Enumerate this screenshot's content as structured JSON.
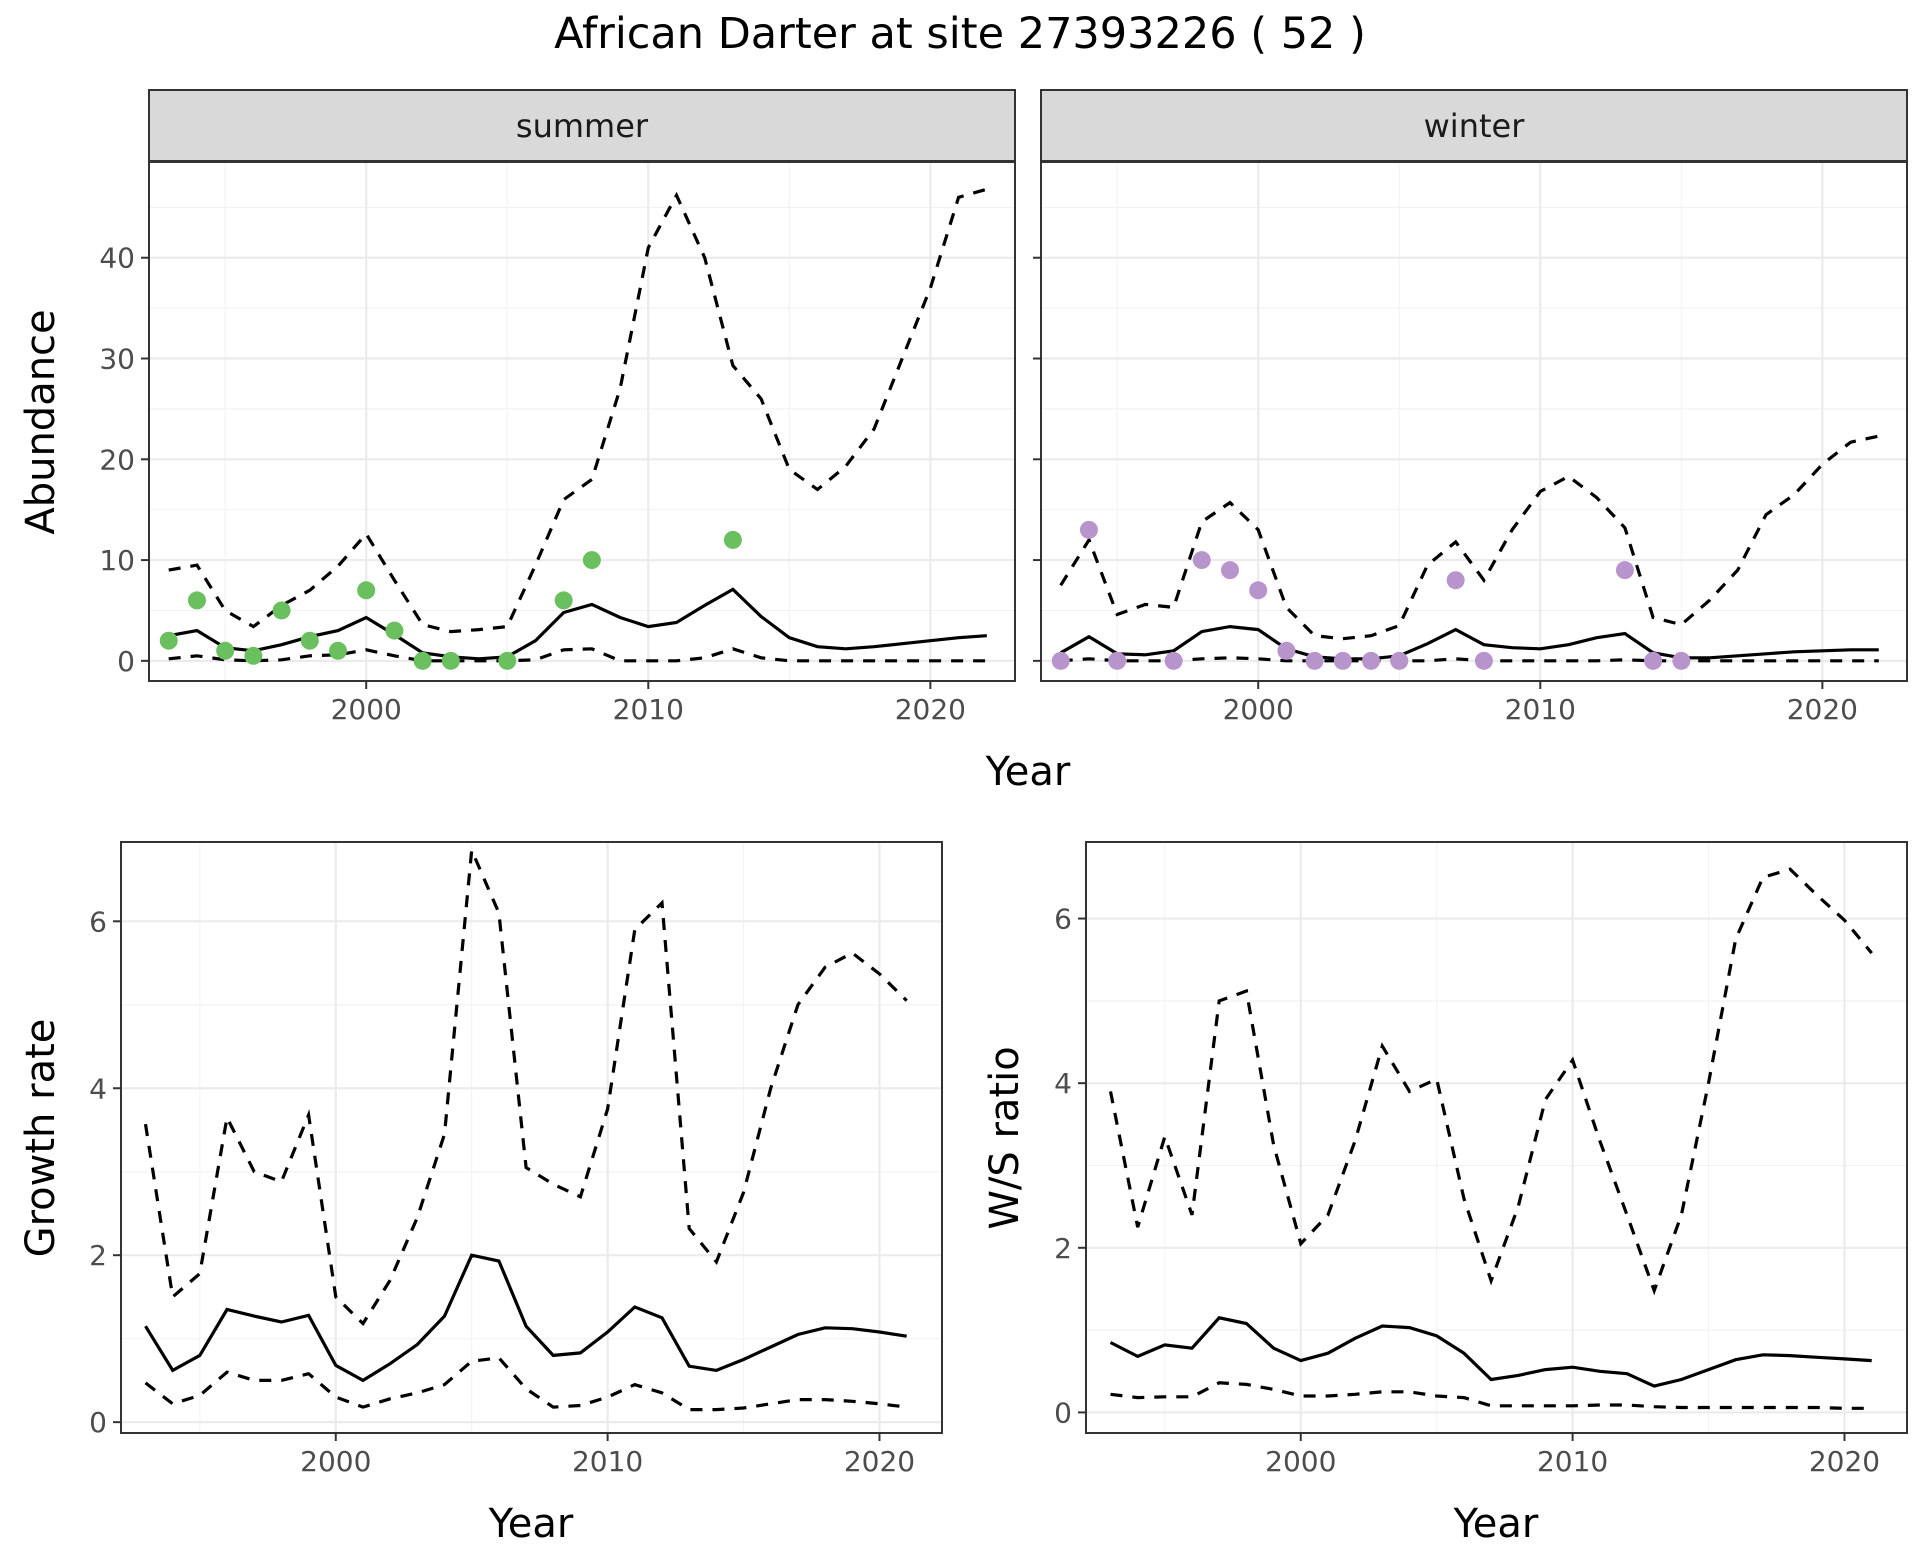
{
  "title": "African Darter at site 27393226 ( 52 )",
  "colors": {
    "summer_points": "#6abf5e",
    "winter_points": "#b894cc",
    "lines": "#000000"
  },
  "chart_data": [
    {
      "type": "line",
      "panel": "summer",
      "strip_label": "summer",
      "xlabel": "Year",
      "ylabel": "Abundance",
      "xlim": [
        1992.3,
        2023.0
      ],
      "ylim": [
        -2.0,
        49.5
      ],
      "x_ticks": [
        2000,
        2010,
        2020
      ],
      "y_ticks": [
        0,
        10,
        20,
        30,
        40
      ],
      "grid": true,
      "point_color": "#6abf5e",
      "x": [
        1993,
        1994,
        1995,
        1996,
        1997,
        1998,
        1999,
        2000,
        2001,
        2002,
        2003,
        2004,
        2005,
        2006,
        2007,
        2008,
        2009,
        2010,
        2011,
        2012,
        2013,
        2014,
        2015,
        2016,
        2017,
        2018,
        2019,
        2020,
        2021,
        2022
      ],
      "median": [
        2.5,
        3.0,
        1.3,
        1.0,
        1.6,
        2.4,
        3.0,
        4.3,
        2.6,
        0.8,
        0.4,
        0.2,
        0.4,
        2.0,
        4.8,
        5.6,
        4.3,
        3.4,
        3.8,
        5.5,
        7.1,
        4.4,
        2.3,
        1.4,
        1.2,
        1.4,
        1.7,
        2.0,
        2.3,
        2.5
      ],
      "upper": [
        9.0,
        9.5,
        5.0,
        3.4,
        5.5,
        7.0,
        9.4,
        12.6,
        8.0,
        3.6,
        2.9,
        3.1,
        3.4,
        9.5,
        16.0,
        18.0,
        27.0,
        41.0,
        46.2,
        40.0,
        29.3,
        26.0,
        19.0,
        17.0,
        19.3,
        23.0,
        30.0,
        37.0,
        46.0,
        46.8
      ],
      "lower": [
        0.2,
        0.5,
        0.1,
        0.0,
        0.1,
        0.5,
        0.6,
        1.1,
        0.5,
        0.0,
        0.0,
        0.0,
        0.0,
        0.1,
        1.1,
        1.2,
        0.0,
        0.0,
        0.0,
        0.3,
        1.2,
        0.3,
        0.0,
        0.0,
        0.0,
        0.0,
        0.0,
        0.0,
        0.0,
        0.0
      ],
      "points": [
        [
          1993,
          2
        ],
        [
          1994,
          6
        ],
        [
          1995,
          1
        ],
        [
          1996,
          0.5
        ],
        [
          1997,
          5
        ],
        [
          1998,
          2
        ],
        [
          1999,
          1
        ],
        [
          2000,
          7
        ],
        [
          2001,
          3
        ],
        [
          2002,
          0
        ],
        [
          2003,
          0
        ],
        [
          2005,
          0
        ],
        [
          2007,
          6
        ],
        [
          2008,
          10
        ],
        [
          2013,
          12
        ]
      ]
    },
    {
      "type": "line",
      "panel": "winter",
      "strip_label": "winter",
      "xlabel": "Year",
      "ylabel": "Abundance",
      "xlim": [
        1992.3,
        2023.0
      ],
      "ylim": [
        -2.0,
        49.5
      ],
      "x_ticks": [
        2000,
        2010,
        2020
      ],
      "y_ticks": [
        0,
        10,
        20,
        30,
        40
      ],
      "grid": true,
      "point_color": "#b894cc",
      "x": [
        1993,
        1994,
        1995,
        1996,
        1997,
        1998,
        1999,
        2000,
        2001,
        2002,
        2003,
        2004,
        2005,
        2006,
        2007,
        2008,
        2009,
        2010,
        2011,
        2012,
        2013,
        2014,
        2015,
        2016,
        2017,
        2018,
        2019,
        2020,
        2021,
        2022
      ],
      "median": [
        0.8,
        2.4,
        0.7,
        0.6,
        1.0,
        2.9,
        3.4,
        3.1,
        1.2,
        0.4,
        0.2,
        0.2,
        0.5,
        1.7,
        3.1,
        1.6,
        1.3,
        1.2,
        1.6,
        2.3,
        2.7,
        0.8,
        0.3,
        0.3,
        0.5,
        0.7,
        0.9,
        1.0,
        1.1,
        1.1
      ],
      "upper": [
        7.5,
        12.0,
        4.6,
        5.6,
        5.3,
        13.8,
        15.7,
        13.0,
        5.3,
        2.5,
        2.2,
        2.5,
        3.5,
        9.5,
        11.8,
        8.0,
        13.0,
        16.8,
        18.3,
        16.2,
        13.2,
        4.3,
        3.6,
        6.0,
        9.0,
        14.5,
        16.5,
        19.5,
        21.7,
        22.3
      ],
      "lower": [
        0.0,
        0.2,
        0.0,
        0.0,
        0.0,
        0.2,
        0.3,
        0.2,
        0.0,
        0.0,
        0.0,
        0.0,
        0.0,
        0.0,
        0.2,
        0.0,
        0.0,
        0.0,
        0.0,
        0.0,
        0.1,
        0.0,
        0.0,
        0.0,
        0.0,
        0.0,
        0.0,
        0.0,
        0.0,
        0.0
      ],
      "points": [
        [
          1993,
          0
        ],
        [
          1994,
          13
        ],
        [
          1995,
          0
        ],
        [
          1997,
          0
        ],
        [
          1998,
          10
        ],
        [
          1999,
          9
        ],
        [
          2000,
          7
        ],
        [
          2001,
          1
        ],
        [
          2002,
          0
        ],
        [
          2003,
          0
        ],
        [
          2004,
          0
        ],
        [
          2005,
          0
        ],
        [
          2007,
          8
        ],
        [
          2008,
          0
        ],
        [
          2013,
          9
        ],
        [
          2014,
          0
        ],
        [
          2015,
          0
        ]
      ]
    },
    {
      "type": "line",
      "panel": "growth",
      "xlabel": "Year",
      "ylabel": "Growth rate",
      "xlim": [
        1992.1,
        2022.3
      ],
      "ylim": [
        -0.13,
        6.95
      ],
      "x_ticks": [
        2000,
        2010,
        2020
      ],
      "y_ticks": [
        0,
        2,
        4,
        6
      ],
      "grid": true,
      "x": [
        1993,
        1994,
        1995,
        1996,
        1997,
        1998,
        1999,
        2000,
        2001,
        2002,
        2003,
        2004,
        2005,
        2006,
        2007,
        2008,
        2009,
        2010,
        2011,
        2012,
        2013,
        2014,
        2015,
        2016,
        2017,
        2018,
        2019,
        2020,
        2021
      ],
      "median": [
        1.15,
        0.62,
        0.8,
        1.35,
        1.27,
        1.2,
        1.28,
        0.68,
        0.5,
        0.7,
        0.93,
        1.27,
        2.0,
        1.93,
        1.15,
        0.8,
        0.83,
        1.08,
        1.38,
        1.25,
        0.67,
        0.62,
        0.75,
        0.9,
        1.05,
        1.13,
        1.12,
        1.08,
        1.03
      ],
      "upper": [
        3.57,
        1.5,
        1.78,
        3.65,
        3.0,
        2.88,
        3.68,
        1.5,
        1.18,
        1.7,
        2.45,
        3.45,
        6.85,
        6.1,
        3.05,
        2.85,
        2.7,
        3.75,
        5.9,
        6.22,
        2.32,
        1.92,
        2.75,
        4.0,
        5.0,
        5.45,
        5.62,
        5.37,
        5.05
      ],
      "lower": [
        0.47,
        0.22,
        0.32,
        0.6,
        0.5,
        0.5,
        0.58,
        0.3,
        0.18,
        0.28,
        0.35,
        0.45,
        0.73,
        0.77,
        0.4,
        0.18,
        0.2,
        0.3,
        0.45,
        0.35,
        0.15,
        0.15,
        0.17,
        0.22,
        0.27,
        0.27,
        0.25,
        0.22,
        0.18
      ]
    },
    {
      "type": "line",
      "panel": "ws_ratio",
      "xlabel": "Year",
      "ylabel": "W/S ratio",
      "xlim": [
        1992.1,
        2022.3
      ],
      "ylim": [
        -0.25,
        6.93
      ],
      "x_ticks": [
        2000,
        2010,
        2020
      ],
      "y_ticks": [
        0,
        2,
        4,
        6
      ],
      "grid": true,
      "x": [
        1993,
        1994,
        1995,
        1996,
        1997,
        1998,
        1999,
        2000,
        2001,
        2002,
        2003,
        2004,
        2005,
        2006,
        2007,
        2008,
        2009,
        2010,
        2011,
        2012,
        2013,
        2014,
        2015,
        2016,
        2017,
        2018,
        2019,
        2020,
        2021
      ],
      "median": [
        0.85,
        0.68,
        0.82,
        0.78,
        1.15,
        1.08,
        0.78,
        0.63,
        0.72,
        0.9,
        1.05,
        1.03,
        0.93,
        0.72,
        0.4,
        0.45,
        0.52,
        0.55,
        0.5,
        0.47,
        0.32,
        0.4,
        0.52,
        0.64,
        0.7,
        0.69,
        0.67,
        0.65,
        0.63
      ],
      "upper": [
        3.9,
        2.25,
        3.35,
        2.4,
        5.0,
        5.12,
        3.25,
        2.05,
        2.4,
        3.3,
        4.45,
        3.9,
        4.05,
        2.6,
        1.6,
        2.5,
        3.8,
        4.28,
        3.3,
        2.4,
        1.48,
        2.4,
        4.0,
        5.75,
        6.5,
        6.6,
        6.28,
        5.98,
        5.58
      ],
      "lower": [
        0.22,
        0.18,
        0.19,
        0.19,
        0.36,
        0.34,
        0.28,
        0.2,
        0.2,
        0.22,
        0.25,
        0.25,
        0.2,
        0.18,
        0.08,
        0.08,
        0.08,
        0.08,
        0.09,
        0.09,
        0.07,
        0.06,
        0.06,
        0.06,
        0.06,
        0.06,
        0.06,
        0.05,
        0.05
      ]
    }
  ]
}
